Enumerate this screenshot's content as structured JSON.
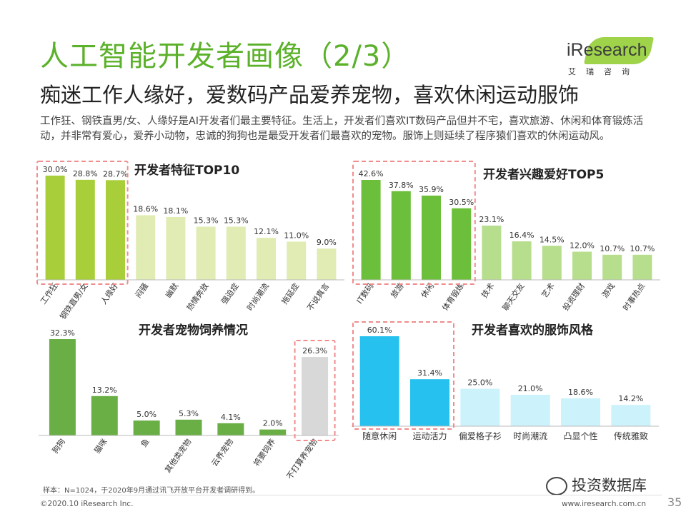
{
  "header": {
    "title": "人工智能开发者画像（2/3）",
    "subtitle": "痴迷工作人缘好，爱数码产品爱养宠物，喜欢休闲运动服饰",
    "description": "工作狂、钢铁直男/女、人缘好是AI开发者们最主要特征。生活上，开发者们喜欢IT数码产品但并不宅，喜欢旅游、休闲和体育锻炼活动，并非常有爱心，爱养小动物，忠诚的狗狗也是最受开发者们最喜欢的宠物。服饰上则延续了程序猿们喜欢的休闲运动风。"
  },
  "logo": {
    "text": "iResearch",
    "sub": "艾瑞咨询"
  },
  "colors": {
    "green_dark": "#a8cf3a",
    "green_light": "#e0ecb4",
    "green_deep": "#6cbf3a",
    "green_soft": "#b6de8c",
    "pet_green": "#6aaf46",
    "pet_gray": "#d8d8d8",
    "blue_dark": "#26c1ef",
    "blue_light": "#ccf2fc",
    "highlight_border": "#f08c8c",
    "title_green": "#5bb12a"
  },
  "chart_data": [
    {
      "id": "traits",
      "type": "bar",
      "title": "开发者特征TOP10",
      "categories": [
        "工作狂",
        "钢铁直男/女",
        "人缘好",
        "闷骚",
        "幽默",
        "热情奔放",
        "强迫症",
        "时尚潮流",
        "拖延症",
        "不说真言"
      ],
      "values": [
        30.0,
        28.8,
        28.7,
        18.6,
        18.1,
        15.3,
        15.3,
        12.1,
        11.0,
        9.0
      ],
      "labels": [
        "30.0%",
        "28.8%",
        "28.7%",
        "18.6%",
        "18.1%",
        "15.3%",
        "15.3%",
        "12.1%",
        "11.0%",
        "9.0%"
      ],
      "highlight_count": 3
    },
    {
      "id": "hobbies",
      "type": "bar",
      "title": "开发者兴趣爱好TOP5",
      "categories": [
        "IT数码",
        "旅游",
        "休闲",
        "体育锻炼",
        "技术",
        "聊天交友",
        "艺术",
        "投资理财",
        "游戏",
        "时事热点"
      ],
      "values": [
        42.6,
        37.8,
        35.9,
        30.5,
        23.1,
        16.4,
        14.5,
        12.0,
        10.7,
        10.7
      ],
      "labels": [
        "42.6%",
        "37.8%",
        "35.9%",
        "30.5%",
        "23.1%",
        "16.4%",
        "14.5%",
        "12.0%",
        "10.7%",
        "10.7%"
      ],
      "highlight_count": 4
    },
    {
      "id": "pets",
      "type": "bar",
      "title": "开发者宠物饲养情况",
      "categories": [
        "狗狗",
        "猫咪",
        "鱼",
        "其他类宠物",
        "云养宠物",
        "将要饲养",
        "不打算养宠物"
      ],
      "values": [
        32.3,
        13.2,
        5.0,
        5.3,
        4.1,
        2.0,
        26.3
      ],
      "labels": [
        "32.3%",
        "13.2%",
        "5.0%",
        "5.3%",
        "4.1%",
        "2.0%",
        "26.3%"
      ],
      "highlight_last": true
    },
    {
      "id": "clothing",
      "type": "bar",
      "title": "开发者喜欢的服饰风格",
      "categories": [
        "随意休闲",
        "运动活力",
        "偏爱格子衫",
        "时尚潮流",
        "凸显个性",
        "传统雅致"
      ],
      "values": [
        60.1,
        31.4,
        25.0,
        21.0,
        18.6,
        14.2
      ],
      "labels": [
        "60.1%",
        "31.4%",
        "25.0%",
        "21.0%",
        "18.6%",
        "14.2%"
      ],
      "highlight_count": 2
    }
  ],
  "footer": {
    "sample": "样本：N=1024，于2020年9月通过讯飞开放平台开发者调研得到。",
    "copyright": "©2020.10 iResearch Inc.",
    "url": "www.iresearch.com.cn",
    "page": "35",
    "watermark": "投资数据库"
  }
}
